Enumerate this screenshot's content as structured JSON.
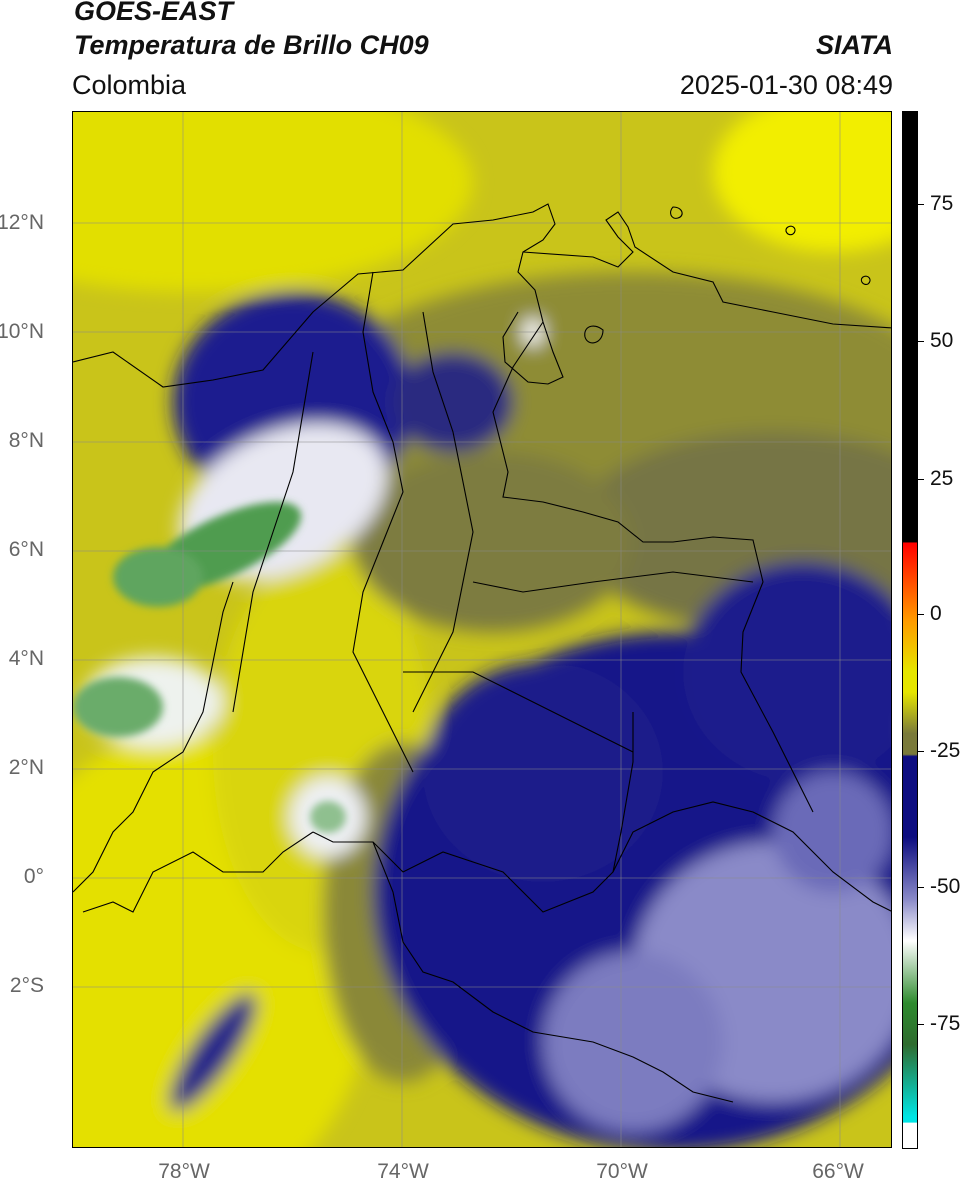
{
  "header": {
    "satellite": "GOES-EAST",
    "product": "Temperatura de Brillo CH09",
    "region": "Colombia",
    "agency": "SIATA",
    "datetime": "2025-01-30 08:49"
  },
  "map": {
    "lat_labels": [
      "12°N",
      "10°N",
      "8°N",
      "6°N",
      "4°N",
      "2°N",
      "0°",
      "2°S"
    ],
    "lon_labels": [
      "78°W",
      "74°W",
      "70°W",
      "66°W"
    ],
    "lon_range": [
      -80,
      -65
    ],
    "lat_range": [
      -4.6,
      14.3
    ],
    "gridlines": true
  },
  "colorbar": {
    "ticks": [
      "75",
      "50",
      "25",
      "0",
      "-25",
      "-50",
      "-75"
    ],
    "range": [
      -92,
      90
    ],
    "colors": {
      "black": "#000000",
      "red": "#ff0000",
      "orange": "#ff9900",
      "yellow": "#e6e600",
      "olive": "#7a7a3a",
      "navy": "#0d0d80",
      "white": "#ffffff",
      "green": "#2e8b2e",
      "cyan": "#00e5e5"
    }
  }
}
